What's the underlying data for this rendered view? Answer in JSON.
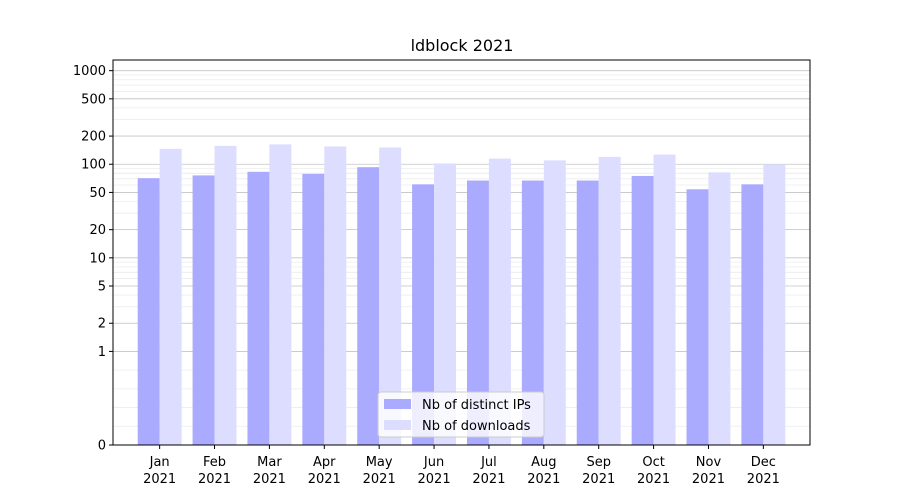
{
  "chart_data": {
    "type": "bar",
    "title": "ldblock 2021",
    "xlabel": "",
    "ylabel": "",
    "yscale": "symlog",
    "ylim": [
      0,
      1300
    ],
    "yticks": [
      {
        "value": 0,
        "label": "0"
      },
      {
        "value": 1,
        "label": "1"
      },
      {
        "value": 2,
        "label": "2"
      },
      {
        "value": 5,
        "label": "5"
      },
      {
        "value": 10,
        "label": "10"
      },
      {
        "value": 20,
        "label": "20"
      },
      {
        "value": 50,
        "label": "50"
      },
      {
        "value": 100,
        "label": "100"
      },
      {
        "value": 200,
        "label": "200"
      },
      {
        "value": 500,
        "label": "500"
      },
      {
        "value": 1000,
        "label": "1000"
      }
    ],
    "categories": [
      {
        "month": "Jan",
        "year": "2021"
      },
      {
        "month": "Feb",
        "year": "2021"
      },
      {
        "month": "Mar",
        "year": "2021"
      },
      {
        "month": "Apr",
        "year": "2021"
      },
      {
        "month": "May",
        "year": "2021"
      },
      {
        "month": "Jun",
        "year": "2021"
      },
      {
        "month": "Jul",
        "year": "2021"
      },
      {
        "month": "Aug",
        "year": "2021"
      },
      {
        "month": "Sep",
        "year": "2021"
      },
      {
        "month": "Oct",
        "year": "2021"
      },
      {
        "month": "Nov",
        "year": "2021"
      },
      {
        "month": "Dec",
        "year": "2021"
      }
    ],
    "series": [
      {
        "name": "Nb of distinct IPs",
        "color": "#aaaaff",
        "values": [
          71,
          76,
          83,
          79,
          93,
          61,
          67,
          67,
          67,
          75,
          54,
          61
        ]
      },
      {
        "name": "Nb of downloads",
        "color": "#ddddff",
        "values": [
          146,
          157,
          163,
          155,
          151,
          102,
          115,
          110,
          120,
          127,
          82,
          100
        ]
      }
    ],
    "grid": true,
    "legend_position": "lower-center"
  }
}
